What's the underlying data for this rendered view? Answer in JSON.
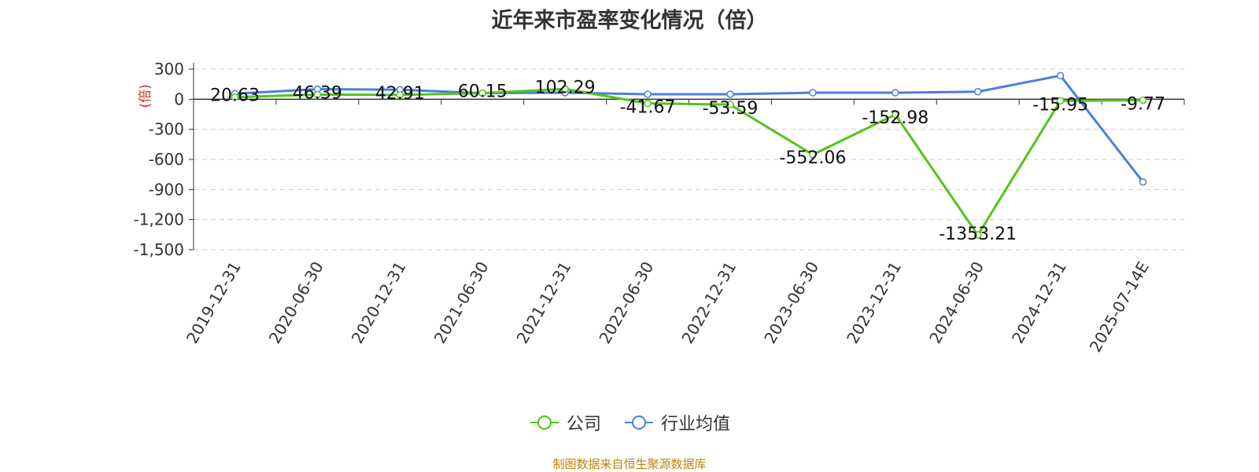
{
  "chart_data": {
    "type": "line",
    "title": "近年来市盈率变化情况（倍）",
    "ylabel": "(倍)",
    "categories": [
      "2019-12-31",
      "2020-06-30",
      "2020-12-31",
      "2021-06-30",
      "2021-12-31",
      "2022-06-30",
      "2022-12-31",
      "2023-06-30",
      "2023-12-31",
      "2024-06-30",
      "2024-12-31",
      "2025-07-14E"
    ],
    "series": [
      {
        "name": "公司",
        "color": "#52c41a",
        "values": [
          20.63,
          46.39,
          42.91,
          60.15,
          102.29,
          -41.67,
          -53.59,
          -552.06,
          -152.98,
          -1353.21,
          -15.95,
          -9.77
        ]
      },
      {
        "name": "行业均值",
        "color": "#4a7fdc",
        "values": [
          55,
          100,
          95,
          60,
          65,
          50,
          50,
          65,
          65,
          75,
          235,
          -825
        ]
      }
    ],
    "data_labels": [
      "20.63",
      "46.39",
      "42.91",
      "60.15",
      "102.29",
      "-41.67",
      "-53.59",
      "-552.06",
      "-152.98",
      "-1353.21",
      "-15.95",
      "-9.77"
    ],
    "y_ticks": [
      "300",
      "0",
      "-300",
      "-600",
      "-900",
      "-1,200",
      "-1,500"
    ],
    "y_tick_values": [
      300,
      0,
      -300,
      -600,
      -900,
      -1200,
      -1500
    ],
    "ylim": [
      -1500,
      300
    ],
    "grid": true,
    "legend_position": "bottom"
  },
  "legend": {
    "company": "公司",
    "industry": "行业均值"
  },
  "source": "制图数据来自恒生聚源数据库"
}
